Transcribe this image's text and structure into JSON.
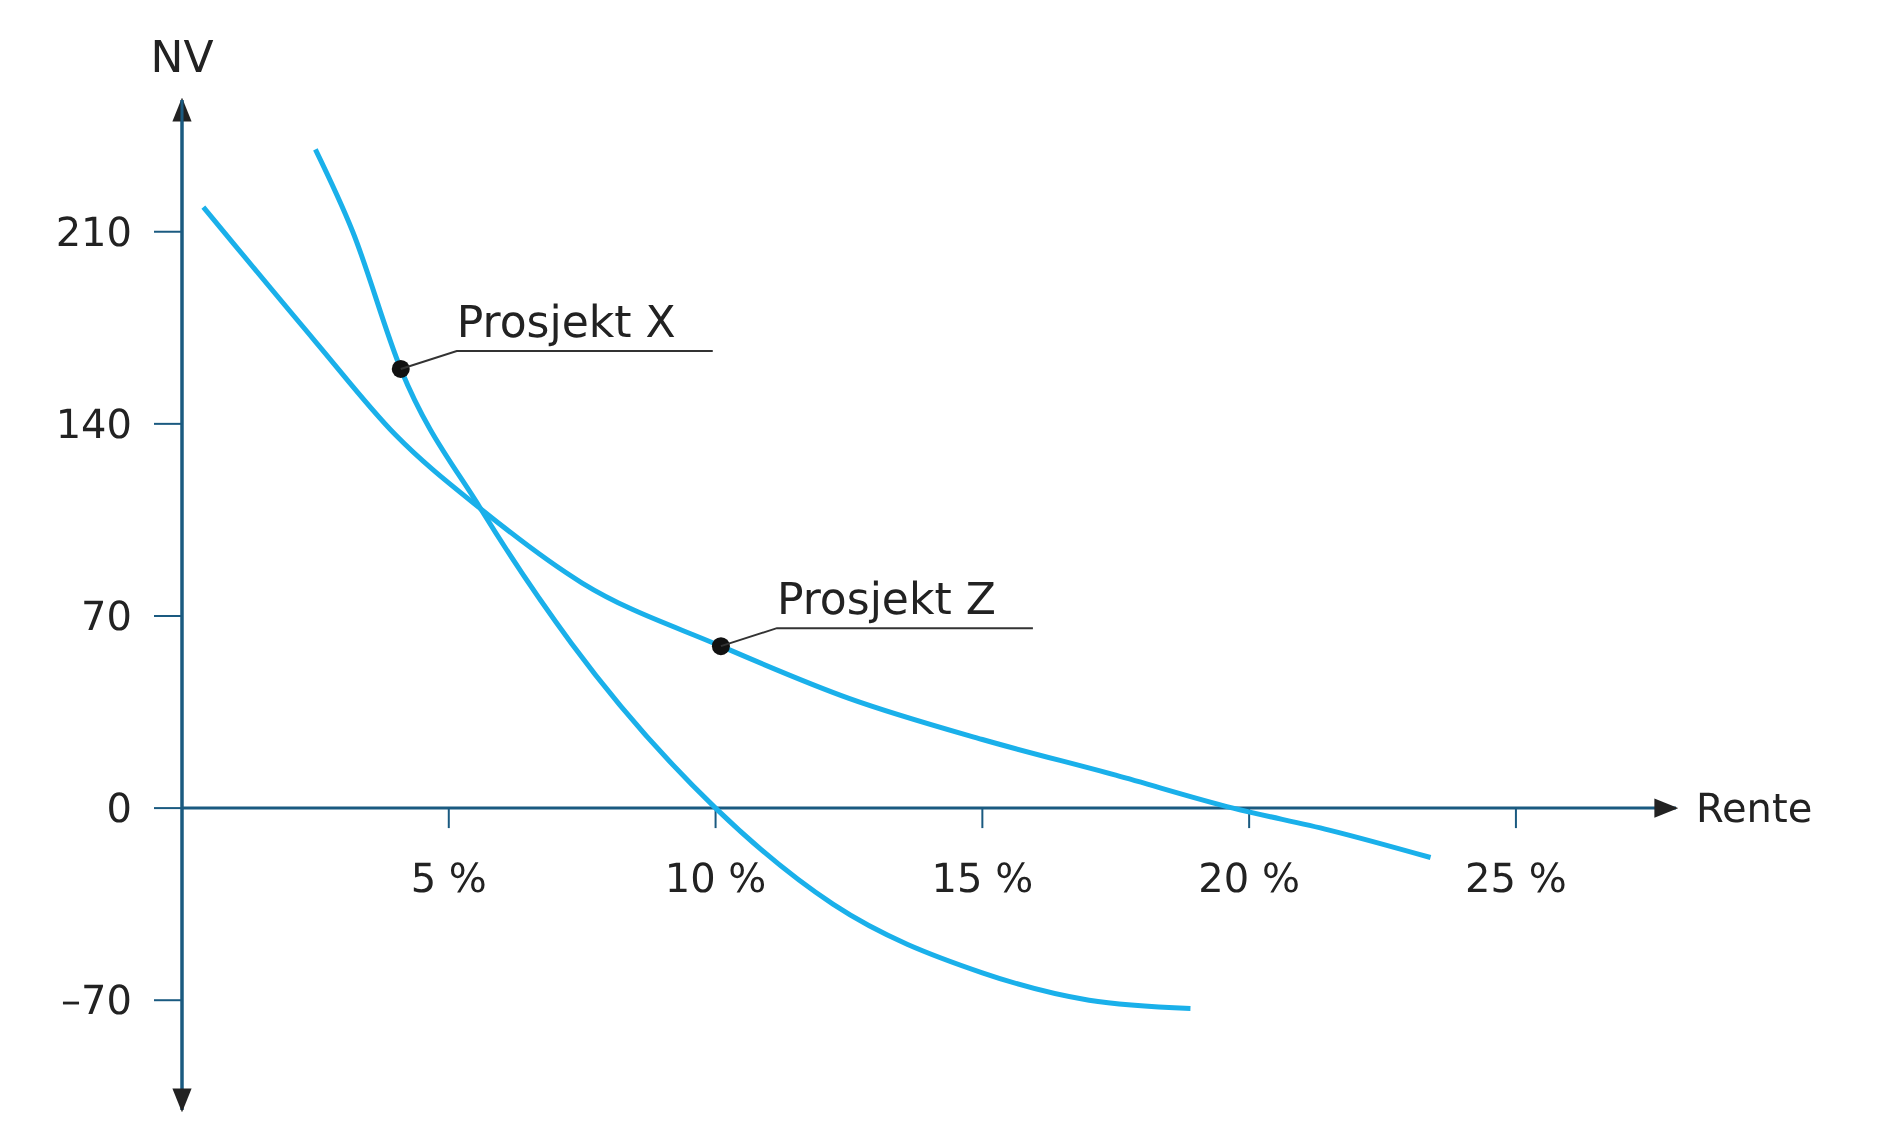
{
  "chart_data": {
    "type": "line",
    "xlabel": "Rente",
    "ylabel": "NV",
    "xlim": [
      0,
      28
    ],
    "ylim": [
      -110,
      258
    ],
    "xticks": [
      {
        "value": 5,
        "label": "5 %"
      },
      {
        "value": 10,
        "label": "10 %"
      },
      {
        "value": 15,
        "label": "15 %"
      },
      {
        "value": 20,
        "label": "20 %"
      },
      {
        "value": 25,
        "label": "25 %"
      }
    ],
    "yticks": [
      {
        "value": -70,
        "label": "–70"
      },
      0,
      70,
      140,
      210
    ],
    "grid": false,
    "marker": "none",
    "line_style": "solid",
    "series": [
      {
        "color": "#1ab0ea",
        "x": [
          2.5,
          3.2,
          4.1,
          5.6,
          7.3,
          10,
          12.2,
          15,
          17,
          18.9
        ],
        "values": [
          240,
          210,
          160,
          109,
          60,
          0,
          -35,
          -60,
          -70,
          -73
        ]
      },
      {
        "color": "#1ab0ea",
        "x": [
          0.4,
          2.5,
          4,
          5.6,
          7.5,
          10.1,
          12.5,
          15,
          17.5,
          19.7,
          21.5,
          23.4
        ],
        "values": [
          219,
          170,
          136,
          109,
          82,
          59,
          40,
          25,
          12,
          0,
          -8,
          -18
        ]
      }
    ],
    "annotations": [
      {
        "text": "Prosjekt X",
        "x": 4.1,
        "y": 160
      },
      {
        "text": "Prosjekt Z",
        "x": 10.1,
        "y": 59
      }
    ]
  }
}
